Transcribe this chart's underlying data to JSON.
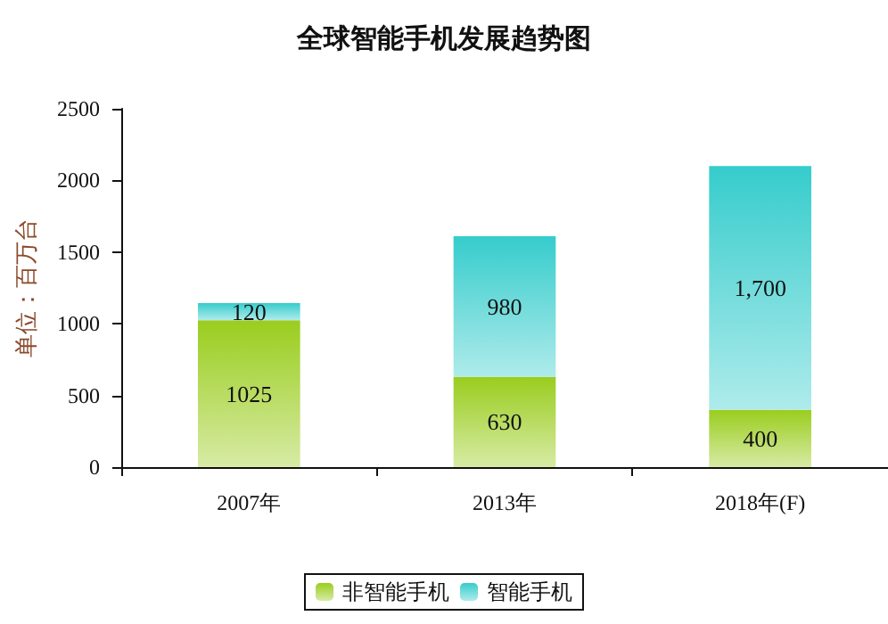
{
  "chart_data": {
    "type": "bar",
    "title": "全球智能手机发展趋势图",
    "ylabel": "单位：百万台",
    "categories": [
      "2007年",
      "2013年",
      "2018年(F)"
    ],
    "stacked": true,
    "series": [
      {
        "name": "非智能手机",
        "color": "#9acd1e",
        "values": [
          1025,
          630,
          400
        ],
        "value_labels": [
          "1025",
          "630",
          "400"
        ]
      },
      {
        "name": "智能手机",
        "color": "#36cccc",
        "values": [
          120,
          980,
          1700
        ],
        "value_labels": [
          "120",
          "980",
          "1,700"
        ]
      }
    ],
    "ylim": [
      0,
      2500
    ],
    "yticks": [
      0,
      500,
      1000,
      1500,
      2000,
      2500
    ],
    "grid": false,
    "legend": "bottom"
  }
}
